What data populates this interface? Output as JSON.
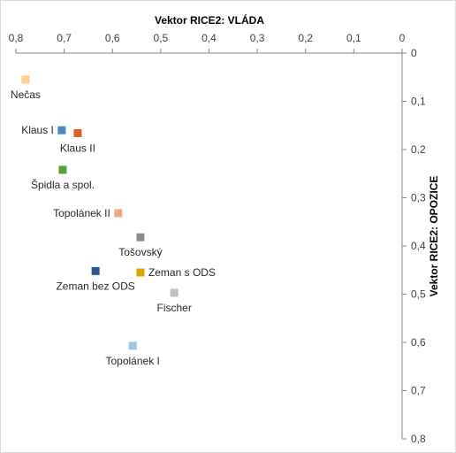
{
  "chart_data": {
    "type": "scatter",
    "xlabel": "Vektor RICE2: VLÁDA",
    "ylabel": "Vektor RICE2: OPOZICE",
    "xlim": [
      0,
      0.8
    ],
    "ylim": [
      0,
      0.8
    ],
    "x_reversed": true,
    "y_reversed": true,
    "x_ticks": [
      "0,8",
      "0,7",
      "0,6",
      "0,5",
      "0,4",
      "0,3",
      "0,2",
      "0,1",
      "0"
    ],
    "x_tick_values": [
      0.8,
      0.7,
      0.6,
      0.5,
      0.4,
      0.3,
      0.2,
      0.1,
      0
    ],
    "y_ticks": [
      "0",
      "0,1",
      "0,2",
      "0,3",
      "0,4",
      "0,5",
      "0,6",
      "0,7",
      "0,8"
    ],
    "y_tick_values": [
      0,
      0.1,
      0.2,
      0.3,
      0.4,
      0.5,
      0.6,
      0.7,
      0.8
    ],
    "x_axis_position": "top",
    "y_axis_position": "right",
    "grid": false,
    "legend": "none",
    "points": [
      {
        "label": "Nečas",
        "x": 0.78,
        "y": 0.055,
        "color": "#FFD08A",
        "label_pos": "below"
      },
      {
        "label": "Klaus I",
        "x": 0.705,
        "y": 0.16,
        "color": "#4A8AC4",
        "label_pos": "left"
      },
      {
        "label": "Klaus II",
        "x": 0.672,
        "y": 0.166,
        "color": "#D9622B",
        "label_pos": "below"
      },
      {
        "label": "Špidla a spol.",
        "x": 0.703,
        "y": 0.242,
        "color": "#5B9E3B",
        "label_pos": "below"
      },
      {
        "label": "Topolánek II",
        "x": 0.588,
        "y": 0.332,
        "color": "#F4A58A",
        "label_pos": "left"
      },
      {
        "label": "Tošovský",
        "x": 0.542,
        "y": 0.382,
        "color": "#8C8C8C",
        "label_pos": "below"
      },
      {
        "label": "Zeman bez ODS",
        "x": 0.635,
        "y": 0.452,
        "color": "#2E5597",
        "label_pos": "below"
      },
      {
        "label": "Zeman s ODS",
        "x": 0.542,
        "y": 0.455,
        "color": "#E0A600",
        "label_pos": "right"
      },
      {
        "label": "Fischer",
        "x": 0.472,
        "y": 0.497,
        "color": "#BFBFBF",
        "label_pos": "below"
      },
      {
        "label": "Topolánek I",
        "x": 0.558,
        "y": 0.607,
        "color": "#9DC3E6",
        "label_pos": "below"
      }
    ]
  }
}
